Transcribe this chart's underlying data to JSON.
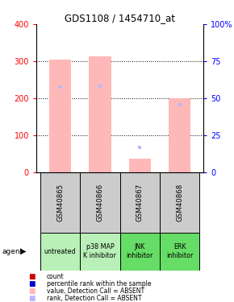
{
  "title": "GDS1108 / 1454710_at",
  "samples": [
    "GSM40865",
    "GSM40866",
    "GSM40867",
    "GSM40868"
  ],
  "agents": [
    "untreated",
    "p38 MAP\nK inhibitor",
    "JNK\ninhibitor",
    "ERK\ninhibitor"
  ],
  "agent_colors": [
    "#b8f0b8",
    "#b8f0b8",
    "#66dd66",
    "#66dd66"
  ],
  "bar_absent_values": [
    305,
    313,
    37,
    200
  ],
  "rank_absent_markers": [
    230,
    233,
    68,
    183
  ],
  "ylim_left": [
    0,
    400
  ],
  "ylim_right": [
    0,
    100
  ],
  "yticks_left": [
    0,
    100,
    200,
    300,
    400
  ],
  "yticks_right": [
    0,
    25,
    50,
    75,
    100
  ],
  "ytick_labels_right": [
    "0",
    "25",
    "50",
    "75",
    "100%"
  ],
  "color_absent_bar": "#ffb8b8",
  "color_rank_absent": "#b8b8ff",
  "color_sample_bg": "#cccccc",
  "legend_items": [
    {
      "label": "count",
      "color": "#cc0000"
    },
    {
      "label": "percentile rank within the sample",
      "color": "#0000cc"
    },
    {
      "label": "value, Detection Call = ABSENT",
      "color": "#ffb8b8"
    },
    {
      "label": "rank, Detection Call = ABSENT",
      "color": "#b8b8ff"
    }
  ],
  "bar_width": 0.55
}
